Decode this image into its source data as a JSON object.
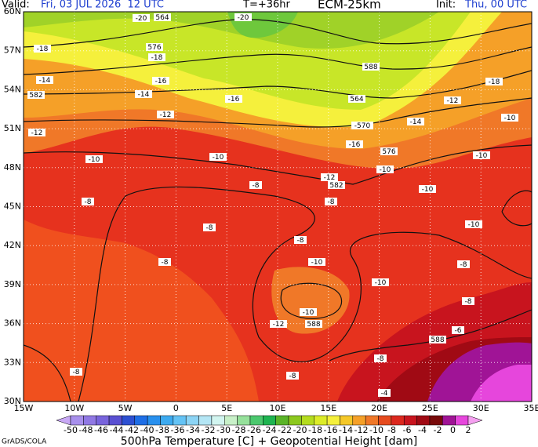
{
  "header": {
    "valid_label": "Valid:",
    "valid_time": "Fri, 03 JUL 2026  12 UTC",
    "lead": "T=+36hr",
    "model": "ECM-25km",
    "init_label": "Init:",
    "init_time": "Thu, 00 UTC"
  },
  "lat_labels": [
    "60N",
    "57N",
    "54N",
    "51N",
    "48N",
    "45N",
    "42N",
    "39N",
    "36N",
    "33N",
    "30N"
  ],
  "lon_labels": [
    "15W",
    "10W",
    "5W",
    "0",
    "5E",
    "10E",
    "15E",
    "20E",
    "25E",
    "30E",
    "35E"
  ],
  "map_labels": [
    "-20",
    "564",
    "-20",
    "-18",
    "576",
    "-18",
    "-14",
    "582",
    "-16",
    "-14",
    "-16",
    "588",
    "564",
    "-570",
    "-12",
    "-12",
    "-14",
    "-16",
    "576",
    "-18",
    "-12",
    "-10",
    "-10",
    "-10",
    "-10",
    "-10",
    "-12",
    "582",
    "-8",
    "-10",
    "-8",
    "-8",
    "-8",
    "-10",
    "-8",
    "-8",
    "-10",
    "-8",
    "-10",
    "-10",
    "-12",
    "588",
    "-8",
    "-6",
    "588",
    "-8",
    "-8",
    "-8",
    "-4"
  ],
  "colorbar": {
    "labels": [
      -50,
      -48,
      -46,
      -44,
      -42,
      -40,
      -38,
      -36,
      -34,
      -32,
      -30,
      -28,
      -26,
      -24,
      -22,
      -20,
      -18,
      -16,
      -14,
      -12,
      -10,
      -8,
      -6,
      -4,
      -2,
      0,
      2
    ],
    "colors": [
      "#c8a8f5",
      "#a890ec",
      "#9078e4",
      "#7864dc",
      "#5a50d2",
      "#2d50d2",
      "#1e6ee6",
      "#2890ee",
      "#3caaf0",
      "#64c3f5",
      "#8cd4f5",
      "#b4e6f5",
      "#d2f5f0",
      "#c8f0c8",
      "#96e19b",
      "#4bc86e",
      "#1eb450",
      "#5ab428",
      "#8cc81e",
      "#b4dc1e",
      "#dcec28",
      "#f5f03c",
      "#f5c828",
      "#f5a028",
      "#f07828",
      "#e64b1e",
      "#dc281e",
      "#c8141e",
      "#a00a14",
      "#780a0a",
      "#a01496",
      "#e646dc",
      "#f5a0f0"
    ]
  },
  "caption": "500hPa Temperature [C] + Geopotential Height [dam]",
  "credit": "GrADS/COLA"
}
